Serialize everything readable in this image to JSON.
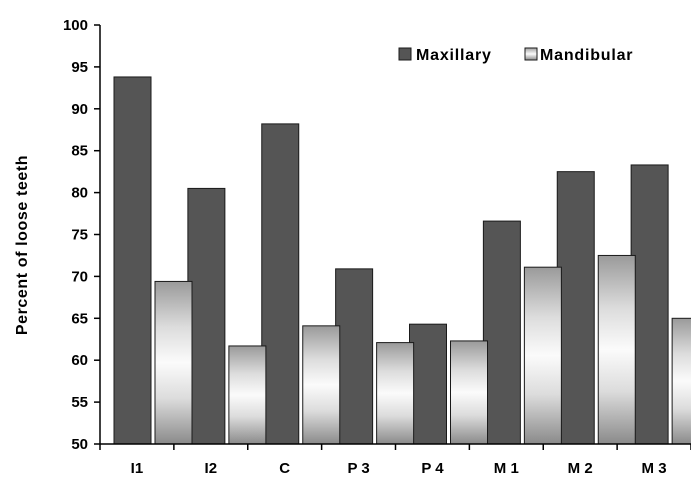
{
  "chart_data": {
    "type": "bar",
    "title": "",
    "xlabel": "",
    "ylabel": "Percent of loose teeth",
    "categories": [
      "I1",
      "I2",
      "C",
      "P 3",
      "P 4",
      "M 1",
      "M 2",
      "M 3"
    ],
    "series": [
      {
        "name": "Maxillary",
        "values": [
          93.8,
          80.5,
          88.2,
          70.9,
          64.3,
          76.6,
          82.5,
          83.3
        ],
        "color": "#555555"
      },
      {
        "name": "Mandibular",
        "values": [
          69.4,
          61.7,
          64.1,
          62.1,
          62.3,
          71.1,
          72.5,
          65.0
        ],
        "color": "gradient-white-gray"
      }
    ],
    "ylim": [
      50,
      100
    ],
    "yticks": [
      50,
      55,
      60,
      65,
      70,
      75,
      80,
      85,
      90,
      95,
      100
    ],
    "grid": false,
    "legend": "top-right"
  }
}
